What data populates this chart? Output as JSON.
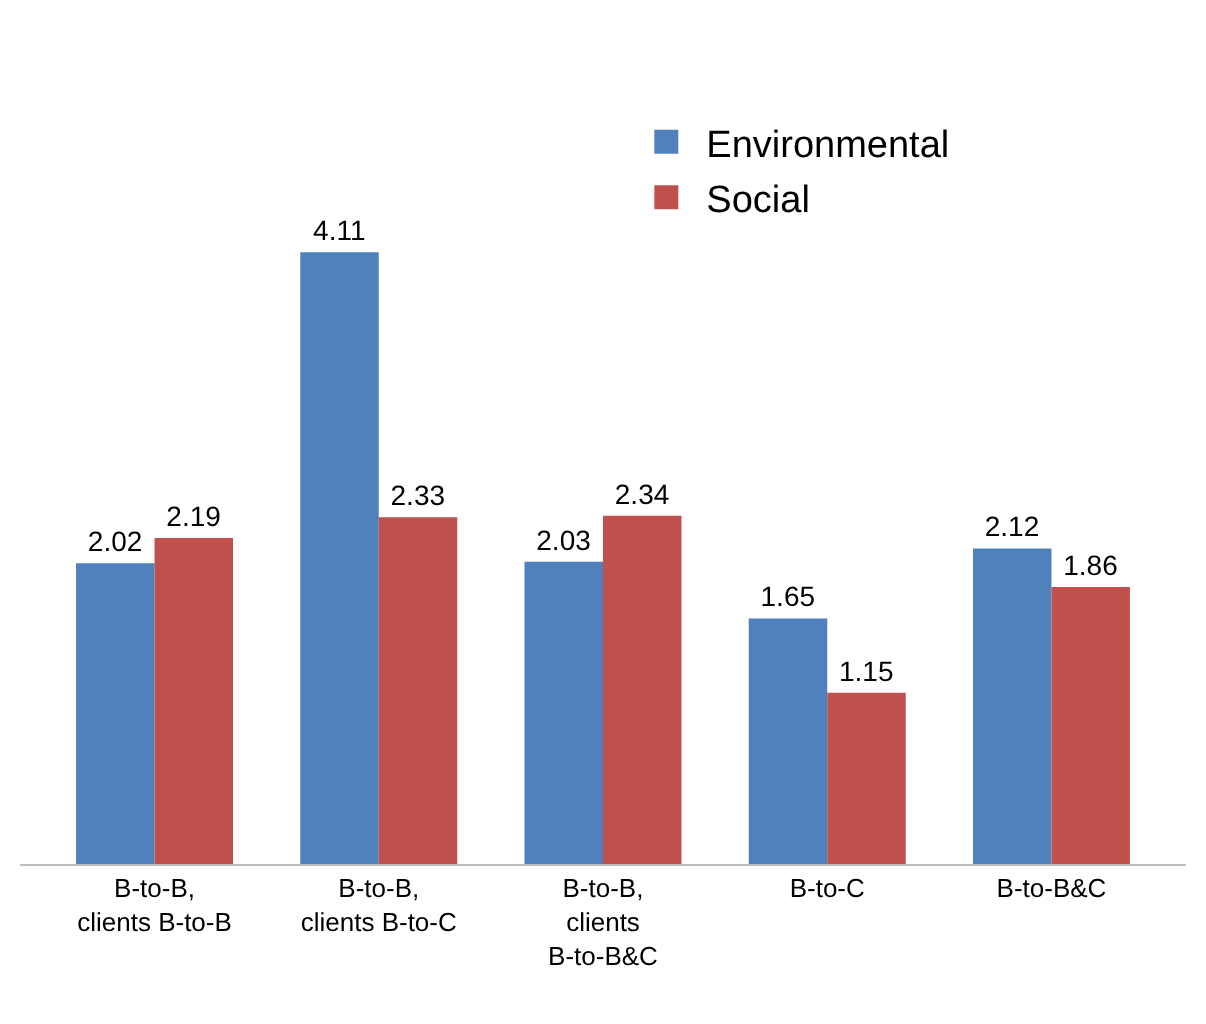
{
  "chart_data": {
    "type": "bar",
    "categories": [
      "B-to-B, clients B-to-B",
      "B-to-B, clients B-to-C",
      "B-to-B, clients B-to-B&C",
      "B-to-C",
      "B-to-B&C"
    ],
    "series": [
      {
        "name": "Environmental",
        "color": "#4f81bd",
        "values": [
          2.02,
          4.11,
          2.03,
          1.65,
          2.12
        ]
      },
      {
        "name": "Social",
        "color": "#c0504d",
        "values": [
          2.19,
          2.33,
          2.34,
          1.15,
          1.86
        ]
      }
    ],
    "data_labels": true,
    "legend": "top right"
  }
}
